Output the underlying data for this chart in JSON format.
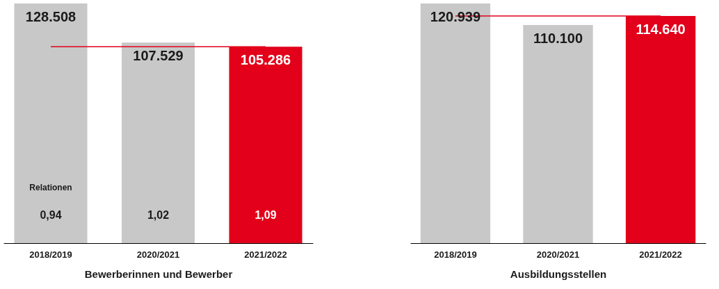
{
  "chart_data": [
    {
      "type": "bar",
      "xlabel": "Bewerberinnen und Bewerber",
      "categories": [
        "2018/2019",
        "2020/2021",
        "2021/2022"
      ],
      "values": [
        128508,
        107529,
        105286
      ],
      "colors": [
        "#c8c8c8",
        "#c8c8c8",
        "#e2001a"
      ],
      "value_labels": [
        "128.508",
        "107.529",
        "105.286"
      ],
      "tick_labels": "x",
      "ref_lines": [
        {
          "axis": "y",
          "value": 105286,
          "color": "#e2001a"
        }
      ],
      "annotations": [
        "Relationen",
        "0,94",
        "1,02",
        "1,09"
      ]
    },
    {
      "type": "bar",
      "xlabel": "Ausbildungsstellen",
      "categories": [
        "2018/2019",
        "2020/2021",
        "2021/2022"
      ],
      "values": [
        120939,
        110100,
        114640
      ],
      "colors": [
        "#c8c8c8",
        "#c8c8c8",
        "#e2001a"
      ],
      "value_labels": [
        "120.939",
        "110.100",
        "114.640"
      ],
      "tick_labels": "x",
      "ref_lines": [
        {
          "axis": "y",
          "value": 114640,
          "color": "#e2001a"
        }
      ]
    }
  ]
}
